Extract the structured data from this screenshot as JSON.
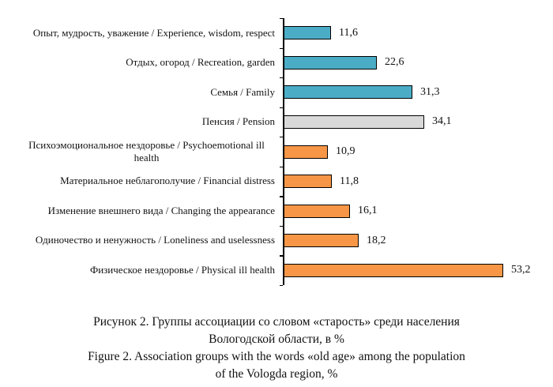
{
  "chart_data": {
    "type": "bar",
    "orientation": "horizontal",
    "unit": "%",
    "categories": [
      "Опыт, мудрость, уважение / Experience, wisdom, respect",
      "Отдых, огород / Recreation, garden",
      "Семья / Family",
      "Пенсия / Pension",
      "Психоэмоциональное нездоровье / Psychoemotional ill health",
      "Материальное неблагополучие / Financial distress",
      "Изменение внешнего вида / Changing the appearance",
      "Одиночество и ненужность / Loneliness and uselessness",
      "Физическое нездоровье / Physical ill health"
    ],
    "values": [
      11.6,
      22.6,
      31.3,
      34.1,
      10.9,
      11.8,
      16.1,
      18.2,
      53.2
    ],
    "value_labels": [
      "11,6",
      "22,6",
      "31,3",
      "34,1",
      "10,9",
      "11,8",
      "16,1",
      "18,2",
      "53,2"
    ],
    "bar_colors": [
      "#4BACC6",
      "#4BACC6",
      "#4BACC6",
      "#D9D9D9",
      "#F79646",
      "#F79646",
      "#F79646",
      "#F79646",
      "#F79646"
    ],
    "bar_border_color": "#000000",
    "axis_color": "#000000",
    "xlim": [
      0,
      60
    ],
    "grid": false,
    "legend": false
  },
  "caption": {
    "ru_line1": "Рисунок 2. Группы ассоциации со словом «старость» среди населения",
    "ru_line2": "Вологодской области, в %",
    "en_line1": "Figure 2. Association groups with the words «old age» among the population",
    "en_line2": "of the Vologda region, %"
  }
}
